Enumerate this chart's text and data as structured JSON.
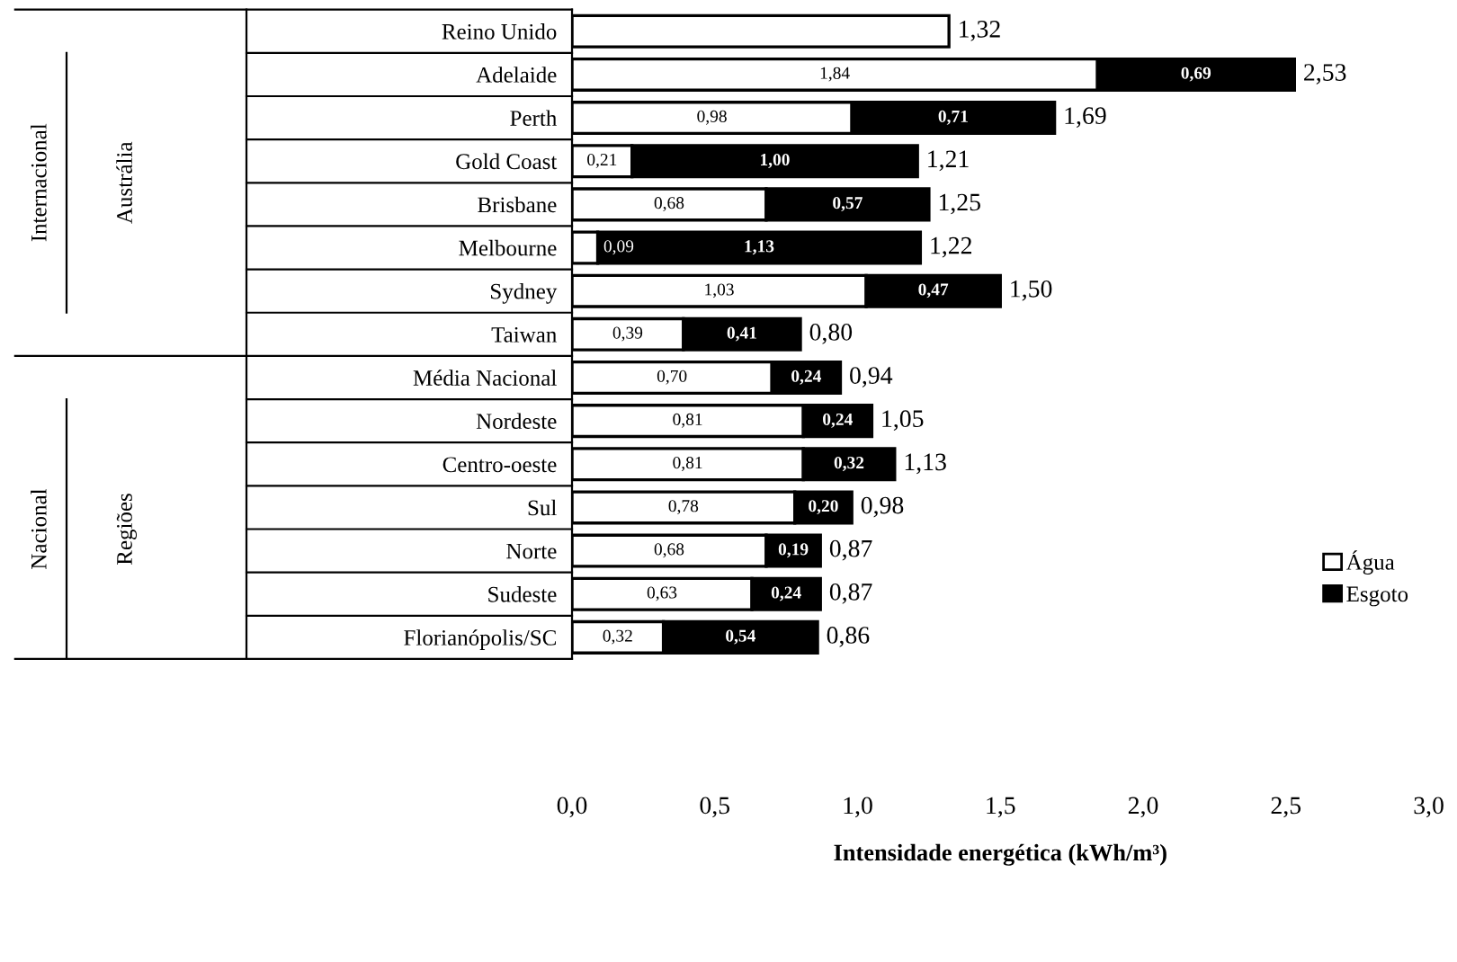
{
  "chart_data": {
    "type": "bar",
    "orientation": "horizontal",
    "stacked": true,
    "categories": [
      "Reino Unido",
      "Adelaide",
      "Perth",
      "Gold Coast",
      "Brisbane",
      "Melbourne",
      "Sydney",
      "Taiwan",
      "Média Nacional",
      "Nordeste",
      "Centro-oeste",
      "Sul",
      "Norte",
      "Sudeste",
      "Florianópolis/SC"
    ],
    "series": [
      {
        "name": "Água",
        "color": "#ffffff",
        "values": [
          1.32,
          1.84,
          0.98,
          0.21,
          0.68,
          0.09,
          1.03,
          0.39,
          0.7,
          0.81,
          0.81,
          0.78,
          0.68,
          0.63,
          0.32
        ],
        "value_labels": [
          null,
          "1,84",
          "0,98",
          "0,21",
          "0,68",
          "0,09",
          "1,03",
          "0,39",
          "0,70",
          "0,81",
          "0,81",
          "0,78",
          "0,68",
          "0,63",
          "0,32"
        ]
      },
      {
        "name": "Esgoto",
        "color": "#000000",
        "values": [
          null,
          0.69,
          0.71,
          1.0,
          0.57,
          1.13,
          0.47,
          0.41,
          0.24,
          0.24,
          0.32,
          0.2,
          0.19,
          0.24,
          0.54
        ],
        "value_labels": [
          null,
          "0,69",
          "0,71",
          "1,00",
          "0,57",
          "1,13",
          "0,47",
          "0,41",
          "0,24",
          "0,24",
          "0,32",
          "0,20",
          "0,19",
          "0,24",
          "0,54"
        ]
      }
    ],
    "totals": [
      "1,32",
      "2,53",
      "1,69",
      "1,21",
      "1,25",
      "1,22",
      "1,50",
      "0,80",
      "0,94",
      "1,05",
      "1,13",
      "0,98",
      "0,87",
      "0,87",
      "0,86"
    ],
    "xlim": [
      0,
      3
    ],
    "xticks": [
      {
        "value": 0,
        "label": "0,0"
      },
      {
        "value": 0.5,
        "label": "0,5"
      },
      {
        "value": 1,
        "label": "1,0"
      },
      {
        "value": 1.5,
        "label": "1,5"
      },
      {
        "value": 2,
        "label": "2,0"
      },
      {
        "value": 2.5,
        "label": "2,5"
      },
      {
        "value": 3,
        "label": "3,0"
      }
    ],
    "xlabel": "Intensidade energética (kWh/m³)",
    "annotations": [
      "Internacional",
      "Austrália",
      "Nacional",
      "Regiões"
    ],
    "grid": false,
    "legend": "bottom right"
  }
}
